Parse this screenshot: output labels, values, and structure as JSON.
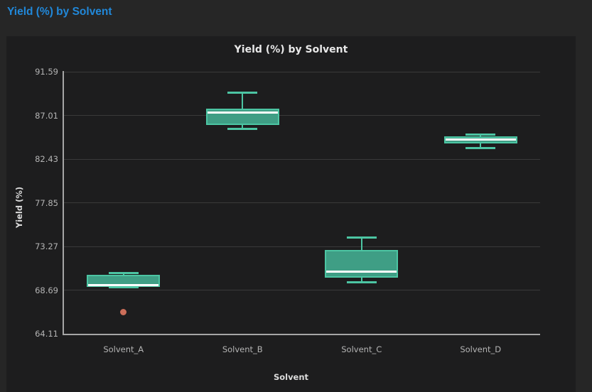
{
  "page": {
    "header_title": "Yield (%) by Solvent"
  },
  "colors": {
    "page_bg": "#262626",
    "card_bg": "#1d1d1e",
    "header_title_blue": "#2188d9",
    "chart_title": "#e8e8e8",
    "axis_label": "#dcdcdc",
    "tick_label": "#b4b4b4",
    "axis_line": "#a6a6a6",
    "gridline": "#3a3a3a",
    "box_border": "#4cc5a3",
    "box_fill": "#3f9e85",
    "median": "#ffffff",
    "outlier": "#cc6e59"
  },
  "chart_data": {
    "type": "box",
    "title": "Yield (%) by Solvent",
    "xlabel": "Solvent",
    "ylabel": "Yield (%)",
    "categories": [
      "Solvent_A",
      "Solvent_B",
      "Solvent_C",
      "Solvent_D"
    ],
    "yticks": [
      91.59,
      87.01,
      82.43,
      77.85,
      73.27,
      68.69,
      64.11
    ],
    "ylim": [
      64.11,
      91.59
    ],
    "grid": true,
    "legend": false,
    "series": [
      {
        "name": "Solvent_A",
        "whisker_low": 69.0,
        "q1": 69.0,
        "median": 69.2,
        "q3": 70.3,
        "whisker_high": 70.5,
        "outliers": [
          66.4
        ]
      },
      {
        "name": "Solvent_B",
        "whisker_low": 85.6,
        "q1": 86.0,
        "median": 87.3,
        "q3": 87.7,
        "whisker_high": 89.4,
        "outliers": []
      },
      {
        "name": "Solvent_C",
        "whisker_low": 69.5,
        "q1": 70.0,
        "median": 70.6,
        "q3": 72.9,
        "whisker_high": 74.2,
        "outliers": []
      },
      {
        "name": "Solvent_D",
        "whisker_low": 83.6,
        "q1": 84.1,
        "median": 84.5,
        "q3": 84.8,
        "whisker_high": 85.0,
        "outliers": []
      }
    ]
  }
}
